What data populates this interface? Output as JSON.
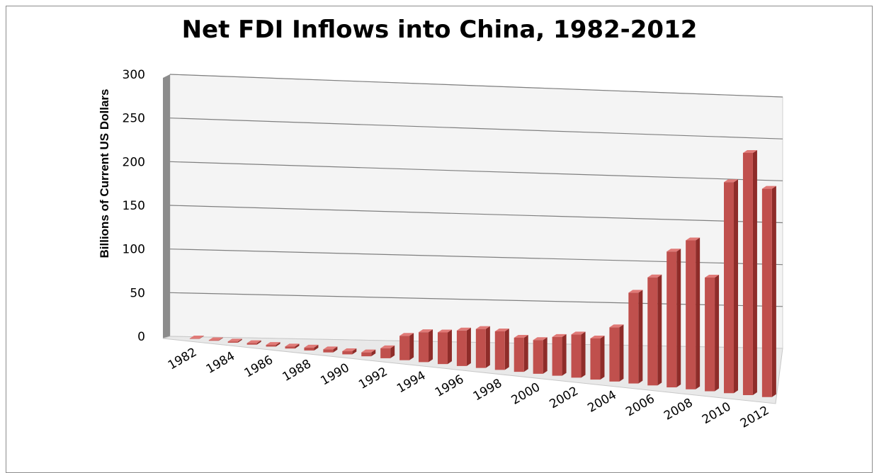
{
  "chart_data": {
    "type": "bar",
    "title": "Net FDI Inflows into China, 1982-2012",
    "ylabel": "Billions of Current US Dollars",
    "xlabel": "",
    "ylim": [
      0,
      300
    ],
    "y_ticks": [
      "300",
      "250",
      "200",
      "150",
      "100",
      "50",
      "0"
    ],
    "x_tick_labels": [
      "1982",
      "1984",
      "1986",
      "1988",
      "1990",
      "1992",
      "1994",
      "1996",
      "1998",
      "2000",
      "2002",
      "2004",
      "2006",
      "2008",
      "2010",
      "2012"
    ],
    "categories": [
      "1982",
      "1983",
      "1984",
      "1985",
      "1986",
      "1987",
      "1988",
      "1989",
      "1990",
      "1991",
      "1992",
      "1993",
      "1994",
      "1995",
      "1996",
      "1997",
      "1998",
      "1999",
      "2000",
      "2001",
      "2002",
      "2003",
      "2004",
      "2005",
      "2006",
      "2007",
      "2008",
      "2009",
      "2010",
      "2011",
      "2012"
    ],
    "values": [
      0.4,
      0.6,
      1.3,
      1.7,
      1.9,
      2.3,
      3.2,
      3.4,
      3.5,
      4.4,
      11.2,
      27.5,
      33.8,
      35.8,
      40.2,
      44.2,
      43.8,
      38.8,
      38.4,
      44.2,
      49.3,
      47.1,
      62.1,
      104.1,
      124.1,
      156.2,
      171.5,
      131.1,
      243.7,
      280.1,
      241.2
    ],
    "grid": true,
    "style": "3d-column",
    "bar_color": "#c0504d",
    "bar_dark": "#8e2c29",
    "bar_light": "#e07a77"
  }
}
